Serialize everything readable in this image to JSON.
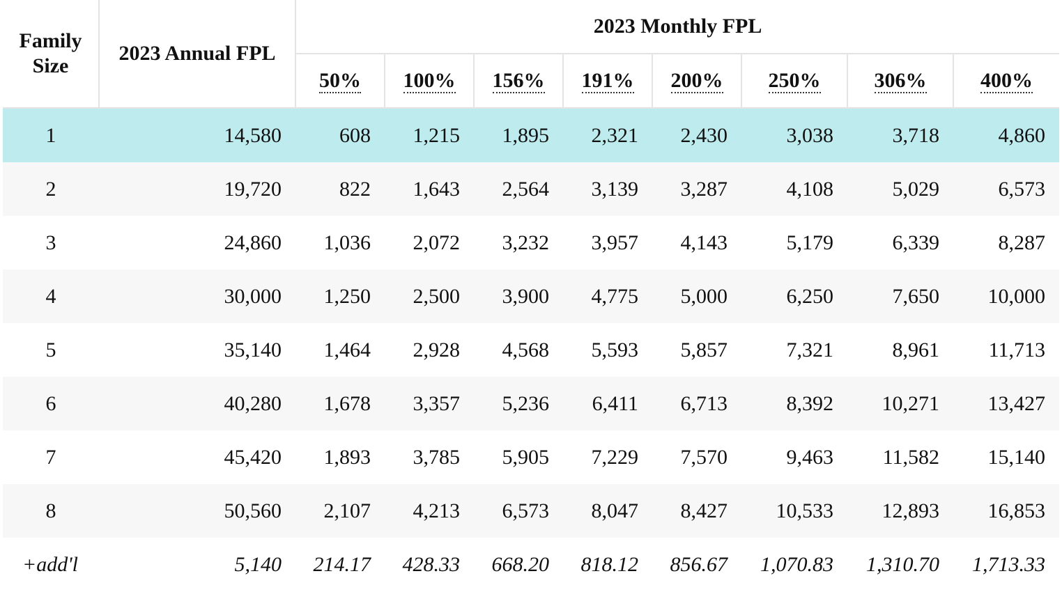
{
  "header": {
    "family_size": "Family\nSize",
    "annual": "2023 Annual FPL",
    "monthly": "2023 Monthly FPL",
    "percentages": [
      "50%",
      "100%",
      "156%",
      "191%",
      "200%",
      "250%",
      "306%",
      "400%"
    ]
  },
  "rows": [
    {
      "size": "1",
      "annual": "14,580",
      "values": [
        "608",
        "1,215",
        "1,895",
        "2,321",
        "2,430",
        "3,038",
        "3,718",
        "4,860"
      ]
    },
    {
      "size": "2",
      "annual": "19,720",
      "values": [
        "822",
        "1,643",
        "2,564",
        "3,139",
        "3,287",
        "4,108",
        "5,029",
        "6,573"
      ]
    },
    {
      "size": "3",
      "annual": "24,860",
      "values": [
        "1,036",
        "2,072",
        "3,232",
        "3,957",
        "4,143",
        "5,179",
        "6,339",
        "8,287"
      ]
    },
    {
      "size": "4",
      "annual": "30,000",
      "values": [
        "1,250",
        "2,500",
        "3,900",
        "4,775",
        "5,000",
        "6,250",
        "7,650",
        "10,000"
      ]
    },
    {
      "size": "5",
      "annual": "35,140",
      "values": [
        "1,464",
        "2,928",
        "4,568",
        "5,593",
        "5,857",
        "7,321",
        "8,961",
        "11,713"
      ]
    },
    {
      "size": "6",
      "annual": "40,280",
      "values": [
        "1,678",
        "3,357",
        "5,236",
        "6,411",
        "6,713",
        "8,392",
        "10,271",
        "13,427"
      ]
    },
    {
      "size": "7",
      "annual": "45,420",
      "values": [
        "1,893",
        "3,785",
        "5,905",
        "7,229",
        "7,570",
        "9,463",
        "11,582",
        "15,140"
      ]
    },
    {
      "size": "8",
      "annual": "50,560",
      "values": [
        "2,107",
        "4,213",
        "6,573",
        "8,047",
        "8,427",
        "10,533",
        "12,893",
        "16,853"
      ]
    },
    {
      "size": "+add'l",
      "annual": "5,140",
      "values": [
        "214.17",
        "428.33",
        "668.20",
        "818.12",
        "856.67",
        "1,070.83",
        "1,310.70",
        "1,713.33"
      ]
    }
  ],
  "colors": {
    "highlight_row": "#bdebee",
    "striped_row": "#f7f7f7",
    "border": "#e3e3e3"
  }
}
